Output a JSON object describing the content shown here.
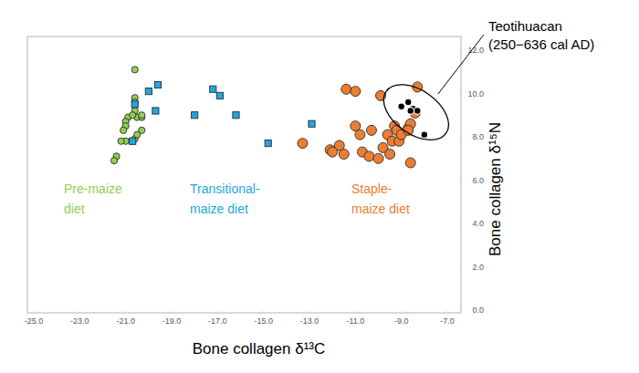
{
  "chart_data": {
    "type": "scatter",
    "x_label": "Bone collagen δ¹³C",
    "y_label": "Bone collagen δ¹⁵N",
    "xlim": [
      -25,
      -7
    ],
    "ylim": [
      0,
      12
    ],
    "xticks": [
      {
        "value": -25,
        "label": "-25.0"
      },
      {
        "value": -23,
        "label": "-23.0"
      },
      {
        "value": -21,
        "label": "-21.0"
      },
      {
        "value": -19,
        "label": "-19.0"
      },
      {
        "value": -17,
        "label": "-17.0"
      },
      {
        "value": -15,
        "label": "-15.0"
      },
      {
        "value": -13,
        "label": "-13.0"
      },
      {
        "value": -11,
        "label": "-11.0"
      },
      {
        "value": -9,
        "label": "-9.0"
      },
      {
        "value": -7,
        "label": "-7.0"
      }
    ],
    "yticks": [
      {
        "value": 0,
        "label": "0.0"
      },
      {
        "value": 2,
        "label": "2.0"
      },
      {
        "value": 4,
        "label": "4.0"
      },
      {
        "value": 6,
        "label": "6.0"
      },
      {
        "value": 8,
        "label": "8.0"
      },
      {
        "value": 10,
        "label": "10.0"
      },
      {
        "value": 12,
        "label": "12.0"
      }
    ],
    "grid": false,
    "series": [
      {
        "name": "Pre-maize\ndiet",
        "color": "#92d050",
        "marker": "circle",
        "x": [
          -20.6,
          -20.6,
          -20.6,
          -20.6,
          -20.5,
          -20.3,
          -20.3,
          -20.9,
          -21.0,
          -21.0,
          -21.1,
          -21.0,
          -21.2,
          -20.7,
          -20.6,
          -20.5,
          -20.3,
          -21.4,
          -21.5,
          -20.7
        ],
        "values": [
          11.1,
          9.8,
          9.6,
          9.2,
          8.9,
          8.9,
          9.0,
          8.9,
          8.7,
          8.5,
          8.3,
          7.8,
          7.8,
          7.8,
          7.9,
          8.1,
          8.3,
          7.1,
          6.9,
          9.0
        ]
      },
      {
        "name": "Transitional-\nmaize diet",
        "color": "#1ea7e1",
        "marker": "square",
        "x": [
          -20.6,
          -20.0,
          -19.6,
          -19.7,
          -18.0,
          -17.2,
          -16.9,
          -16.2,
          -14.8,
          -12.9,
          -20.7
        ],
        "values": [
          9.5,
          10.1,
          10.4,
          9.2,
          9.0,
          10.2,
          9.9,
          9.0,
          7.7,
          8.6,
          7.8
        ]
      },
      {
        "name": "Staple-\nmaize diet",
        "color": "#ed7d31",
        "marker": "circle",
        "x": [
          -13.3,
          -12.1,
          -11.7,
          -11.5,
          -11.4,
          -11.0,
          -11.0,
          -10.7,
          -10.4,
          -10.3,
          -10.0,
          -9.9,
          -9.8,
          -9.6,
          -9.5,
          -9.4,
          -9.3,
          -9.1,
          -9.2,
          -9.0,
          -8.7,
          -8.6,
          -8.7,
          -8.6,
          -8.3,
          -8.4,
          -10.8,
          -12.0
        ],
        "values": [
          7.7,
          7.4,
          7.6,
          7.2,
          10.2,
          10.1,
          8.5,
          7.3,
          7.1,
          8.3,
          7.0,
          9.9,
          7.5,
          8.1,
          7.2,
          7.8,
          8.5,
          7.8,
          8.3,
          8.1,
          8.4,
          8.6,
          8.3,
          6.8,
          10.3,
          9.1,
          8.1,
          7.3
        ]
      },
      {
        "name": "Teotihuacan\n(250−636 cal AD)",
        "color": "#000000",
        "marker": "circle",
        "x": [
          -9.0,
          -8.7,
          -8.5,
          -8.3,
          -8.0,
          -8.6
        ],
        "values": [
          9.4,
          9.6,
          9.3,
          9.2,
          8.1,
          9.2
        ]
      }
    ]
  }
}
